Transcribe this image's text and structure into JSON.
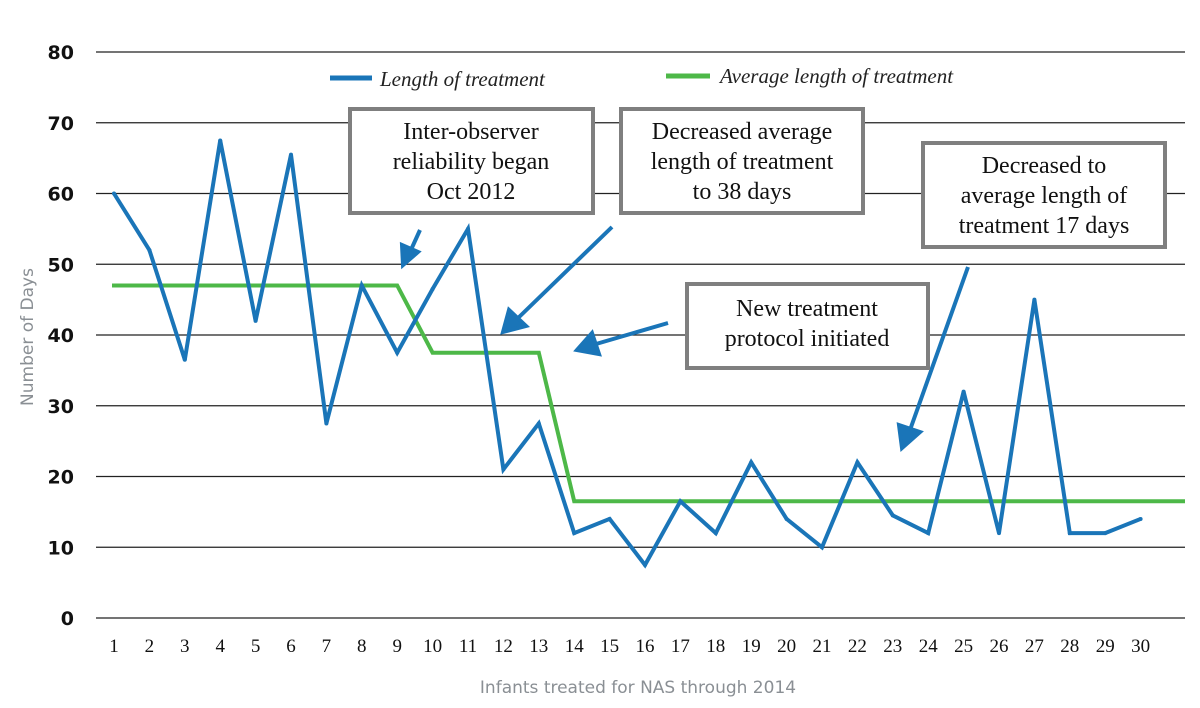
{
  "chart_data": {
    "type": "line",
    "title": "",
    "xlabel": "Infants treated for NAS through 2014",
    "ylabel": "Number of Days",
    "x": [
      1,
      2,
      3,
      4,
      5,
      6,
      7,
      8,
      9,
      10,
      11,
      12,
      13,
      14,
      15,
      16,
      17,
      18,
      19,
      20,
      21,
      22,
      23,
      24,
      25,
      26,
      27,
      28,
      29,
      30
    ],
    "x_tick_labels": [
      "1",
      "2",
      "3",
      "4",
      "5",
      "6",
      "7",
      "8",
      "9",
      "10",
      "11",
      "12",
      "13",
      "14",
      "15",
      "16",
      "17",
      "18",
      "19",
      "20",
      "21",
      "22",
      "23",
      "24",
      "25",
      "26",
      "27",
      "28",
      "29",
      "30"
    ],
    "ylim": [
      0,
      80
    ],
    "y_ticks": [
      0,
      10,
      20,
      30,
      40,
      50,
      60,
      70,
      80
    ],
    "grid": "horizontal",
    "legend_position": "top",
    "series": [
      {
        "name": "Length of treatment",
        "color": "#1a75b8",
        "values": [
          60,
          52,
          36.5,
          67.5,
          42,
          65.5,
          27.5,
          47,
          37.5,
          46.5,
          55,
          21,
          27.5,
          12,
          14,
          7.5,
          16.5,
          12,
          22,
          14,
          10,
          22,
          14.5,
          12,
          32,
          12,
          45,
          12,
          12,
          14
        ]
      },
      {
        "name": "Average length of treatment",
        "color": "#4db848",
        "step_values": [
          {
            "x_start": 1,
            "x_end": 9,
            "value": 47
          },
          {
            "x_start": 10,
            "x_end": 13,
            "value": 37.5
          },
          {
            "x_start": 14,
            "x_end": 30,
            "value": 16.5
          }
        ]
      }
    ],
    "annotations": [
      {
        "lines": [
          "Inter-observer",
          "reliability began",
          "Oct 2012"
        ],
        "points_to": "x≈9"
      },
      {
        "lines": [
          "Decreased average",
          "length of treatment",
          "to 38 days"
        ],
        "points_to": "x≈12"
      },
      {
        "lines": [
          "New treatment",
          "protocol initiated"
        ],
        "points_to": "x≈13"
      },
      {
        "lines": [
          "Decreased to",
          "average length of",
          "treatment 17 days"
        ],
        "points_to": "x≈23"
      }
    ]
  }
}
